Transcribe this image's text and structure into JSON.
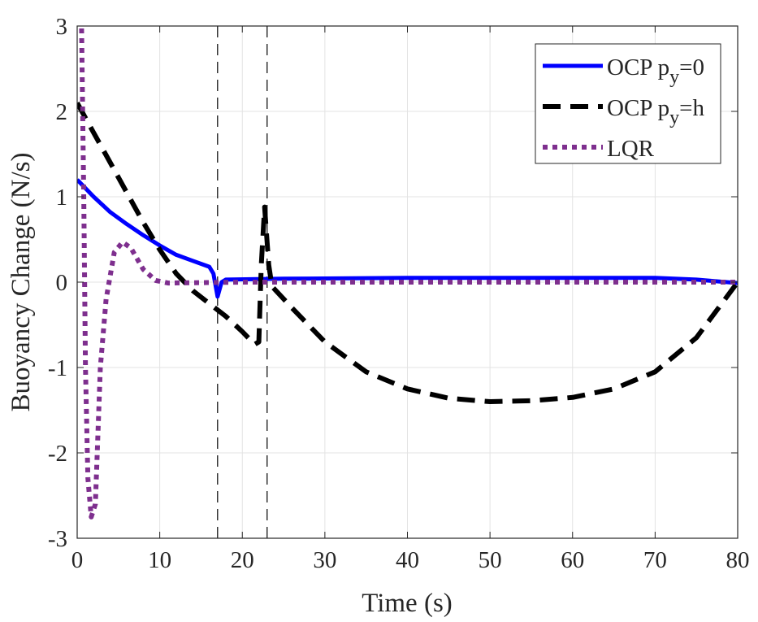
{
  "chart_data": {
    "type": "line",
    "xlabel": "Time (s)",
    "ylabel": "Buoyancy Change (N/s)",
    "xlim": [
      0,
      80
    ],
    "ylim": [
      -3,
      3
    ],
    "xticks": [
      0,
      10,
      20,
      30,
      40,
      50,
      60,
      70,
      80
    ],
    "yticks": [
      -3,
      -2,
      -1,
      0,
      1,
      2,
      3
    ],
    "grid": true,
    "legend_placement": "top-right",
    "vlines": [
      17,
      23
    ],
    "series": [
      {
        "name": "OCP p_y=0",
        "legend_main": "OCP p",
        "legend_sub": "y",
        "legend_tail": "=0",
        "color": "#0000ff",
        "style": "solid",
        "x": [
          0,
          2,
          4,
          6,
          8,
          10,
          12,
          14,
          16,
          16.5,
          17,
          17.5,
          18,
          25,
          40,
          60,
          70,
          75,
          80
        ],
        "y": [
          1.2,
          1.0,
          0.82,
          0.68,
          0.55,
          0.43,
          0.32,
          0.25,
          0.18,
          0.1,
          -0.17,
          0,
          0.03,
          0.04,
          0.05,
          0.05,
          0.05,
          0.03,
          -0.01
        ]
      },
      {
        "name": "OCP p_y=h",
        "legend_main": "OCP p",
        "legend_sub": "y",
        "legend_tail": "=h",
        "color": "#000000",
        "style": "dashed",
        "x": [
          0,
          2,
          4,
          6,
          8,
          10,
          12,
          14,
          16,
          18,
          20,
          21.5,
          22,
          22.3,
          22.7,
          23.2,
          23.6,
          26,
          30,
          35,
          40,
          45,
          50,
          55,
          60,
          65,
          70,
          75,
          80
        ],
        "y": [
          2.1,
          1.75,
          1.4,
          1.05,
          0.7,
          0.38,
          0.1,
          -0.1,
          -0.25,
          -0.4,
          -0.58,
          -0.73,
          -0.7,
          0.2,
          0.88,
          0.2,
          -0.05,
          -0.3,
          -0.7,
          -1.05,
          -1.25,
          -1.36,
          -1.4,
          -1.39,
          -1.35,
          -1.25,
          -1.05,
          -0.65,
          0
        ]
      },
      {
        "name": "LQR",
        "legend_main": "LQR",
        "legend_sub": "",
        "legend_tail": "",
        "color": "#7e2f8e",
        "style": "dotted",
        "x": [
          0.5,
          0.8,
          1,
          1.3,
          1.7,
          2.2,
          2.8,
          3.5,
          4.5,
          5.5,
          6.5,
          8,
          9.5,
          11,
          20,
          40,
          80
        ],
        "y": [
          3.2,
          1,
          -1,
          -2.3,
          -2.75,
          -2.6,
          -1,
          -0.2,
          0.35,
          0.47,
          0.4,
          0.15,
          0.02,
          -0.01,
          0,
          0,
          0
        ]
      }
    ]
  }
}
